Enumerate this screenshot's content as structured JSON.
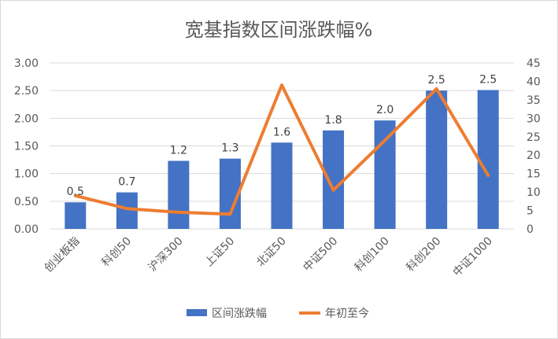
{
  "chart_data": {
    "type": "bar",
    "title": "宽基指数区间涨跌幅%",
    "categories": [
      "创业板指",
      "科创50",
      "沪深300",
      "上证50",
      "北证50",
      "中证500",
      "科创100",
      "科创200",
      "中证1000"
    ],
    "series": [
      {
        "name": "区间涨跌幅",
        "type": "bar",
        "axis": "left",
        "color": "#4472C4",
        "values": [
          0.48,
          0.66,
          1.23,
          1.27,
          1.56,
          1.78,
          1.96,
          2.5,
          2.51
        ],
        "labels": [
          "0.5",
          "0.7",
          "1.2",
          "1.3",
          "1.6",
          "1.8",
          "2.0",
          "2.5",
          "2.5"
        ]
      },
      {
        "name": "年初至今",
        "type": "line",
        "axis": "right",
        "color": "#ED7D31",
        "values": [
          9,
          5.5,
          4.5,
          4,
          39,
          10.5,
          24,
          38,
          14.5
        ]
      }
    ],
    "y_left": {
      "ylim": [
        0,
        3
      ],
      "ticks": [
        "0.00",
        "0.50",
        "1.00",
        "1.50",
        "2.00",
        "2.50",
        "3.00"
      ]
    },
    "y_right": {
      "ylim": [
        0,
        45
      ],
      "ticks": [
        "0",
        "5",
        "10",
        "15",
        "20",
        "25",
        "30",
        "35",
        "40",
        "45"
      ]
    },
    "grid": true,
    "legend_position": "bottom"
  }
}
